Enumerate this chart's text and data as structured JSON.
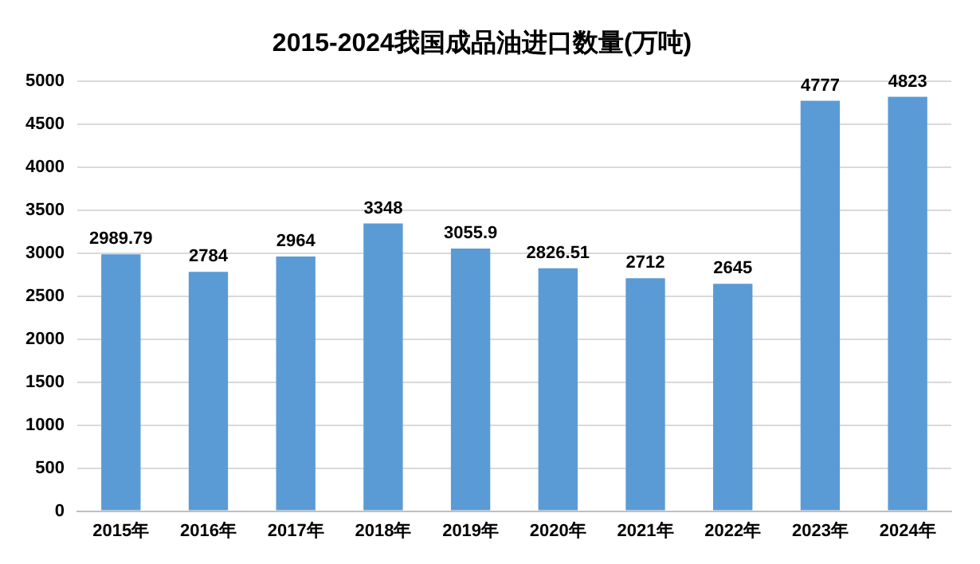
{
  "chart_data": {
    "type": "bar",
    "title": "2015-2024我国成品油进口数量(万吨)",
    "categories": [
      "2015年",
      "2016年",
      "2017年",
      "2018年",
      "2019年",
      "2020年",
      "2021年",
      "2022年",
      "2023年",
      "2024年"
    ],
    "values": [
      2989.79,
      2784,
      2964,
      3348,
      3055.9,
      2826.51,
      2712,
      2645,
      4777,
      4823
    ],
    "color": "#5b9bd5",
    "ylim": [
      0,
      5000
    ],
    "yticks": [
      0,
      500,
      1000,
      1500,
      2000,
      2500,
      3000,
      3500,
      4000,
      4500,
      5000
    ],
    "grid": "y",
    "data_labels": true,
    "legend": false
  }
}
